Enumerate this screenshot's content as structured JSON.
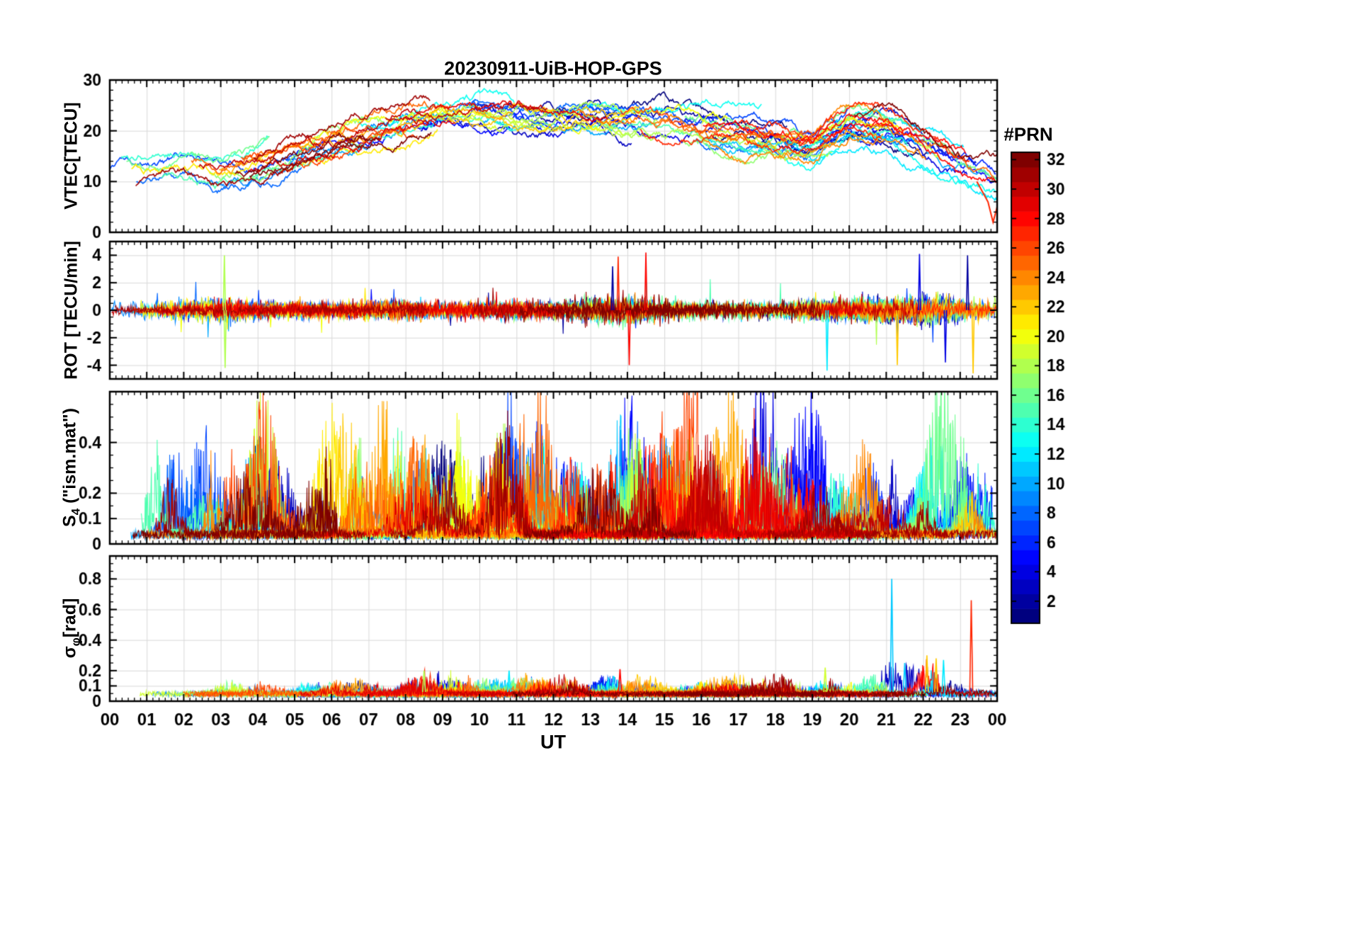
{
  "title": "20230911-UiB-HOP-GPS",
  "xlabel": "UT",
  "x_axis": {
    "range_hours": [
      0,
      24
    ],
    "tick_labels": [
      "00",
      "01",
      "02",
      "03",
      "04",
      "05",
      "06",
      "07",
      "08",
      "09",
      "10",
      "11",
      "12",
      "13",
      "14",
      "15",
      "16",
      "17",
      "18",
      "19",
      "20",
      "21",
      "22",
      "23",
      "00"
    ]
  },
  "colorbar": {
    "label": "#PRN",
    "ticks": [
      2,
      4,
      6,
      8,
      10,
      12,
      14,
      16,
      18,
      20,
      22,
      24,
      26,
      28,
      30,
      32
    ],
    "colormap": "jet",
    "n_colors": 32,
    "value_range": [
      1,
      32
    ]
  },
  "chart_data": [
    {
      "type": "line",
      "name": "vtec",
      "ylabel": "VTEC[TECU]",
      "ylim": [
        0,
        30
      ],
      "yticks": [
        0,
        10,
        20,
        30
      ],
      "ytick_labels": [
        "0",
        "10",
        "20",
        "30"
      ],
      "minor_step": 2,
      "series_count": 32,
      "mean_hourly": [
        12,
        12.5,
        13,
        11.5,
        13,
        15.5,
        18,
        20,
        21.5,
        23,
        23.5,
        22.5,
        22,
        22.5,
        21.5,
        21,
        20,
        19,
        18,
        17,
        21,
        20.5,
        17,
        13.5,
        10.5
      ],
      "spread_tecu": 3,
      "events": [
        {
          "x0": 23.45,
          "x1": 24,
          "y0": 10,
          "y1": 2,
          "prn": 27
        }
      ]
    },
    {
      "type": "line",
      "name": "rot",
      "ylabel": "ROT [TECU/min]",
      "ylim": [
        -5,
        5
      ],
      "yticks": [
        -4,
        -2,
        0,
        2,
        4
      ],
      "ytick_labels": [
        "-4",
        "-2",
        "0",
        "2",
        "4"
      ],
      "minor_step": 0.5,
      "series_count": 32,
      "amp_hourly": [
        0.5,
        0.45,
        0.6,
        0.7,
        0.5,
        0.45,
        0.4,
        0.5,
        0.6,
        0.5,
        0.5,
        0.6,
        0.5,
        0.8,
        0.9,
        0.6,
        0.5,
        0.5,
        0.45,
        0.6,
        0.7,
        0.8,
        0.9,
        0.8,
        0.6
      ],
      "events": [
        {
          "x": 3.1,
          "y": 4.0,
          "prn": 18
        },
        {
          "x": 3.12,
          "y": -4.2,
          "prn": 18
        },
        {
          "x": 13.6,
          "y": 3.2,
          "prn": 2
        },
        {
          "x": 13.75,
          "y": 3.9,
          "prn": 27
        },
        {
          "x": 14.5,
          "y": 4.2,
          "prn": 28
        },
        {
          "x": 14.05,
          "y": -4.0,
          "prn": 28
        },
        {
          "x": 19.4,
          "y": -4.4,
          "prn": 12
        },
        {
          "x": 21.3,
          "y": -4.0,
          "prn": 22
        },
        {
          "x": 21.9,
          "y": 4.1,
          "prn": 4
        },
        {
          "x": 22.6,
          "y": -3.8,
          "prn": 4
        },
        {
          "x": 23.2,
          "y": 4.0,
          "prn": 2
        },
        {
          "x": 23.35,
          "y": -4.6,
          "prn": 22
        }
      ]
    },
    {
      "type": "line",
      "name": "s4",
      "ylabel": {
        "pre": "S",
        "sub": "4",
        "post": " (\"ism.mat\")"
      },
      "ylim": [
        0,
        0.6
      ],
      "yticks": [
        0,
        0.1,
        0.2,
        0.4
      ],
      "ytick_labels": [
        "0",
        "0.1",
        "0.2",
        "0.4"
      ],
      "minor_step": 0.05,
      "series_count": 32,
      "baseline": 0.03,
      "burst_max_hourly": [
        0.55,
        0.5,
        0.55,
        0.45,
        0.55,
        0.5,
        0.58,
        0.45,
        0.42,
        0.45,
        0.5,
        0.5,
        0.33,
        0.35,
        0.55,
        0.42,
        0.45,
        0.5,
        0.52,
        0.38,
        0.3,
        0.3,
        0.38,
        0.35,
        0.3
      ]
    },
    {
      "type": "line",
      "name": "sigma_phi",
      "ylabel": {
        "pre": "σ",
        "sub": "φ",
        "post": "[rad]"
      },
      "ylim": [
        0,
        0.95
      ],
      "yticks": [
        0,
        0.1,
        0.2,
        0.4,
        0.6,
        0.8
      ],
      "ytick_labels": [
        "0",
        "0.1",
        "0.2",
        "0.4",
        "0.6",
        "0.8"
      ],
      "minor_step": 0.05,
      "series_count": 32,
      "baseline": 0.05,
      "bump_max_hourly": [
        0.1,
        0.1,
        0.1,
        0.1,
        0.1,
        0.08,
        0.1,
        0.1,
        0.15,
        0.1,
        0.12,
        0.15,
        0.1,
        0.12,
        0.15,
        0.12,
        0.1,
        0.1,
        0.1,
        0.15,
        0.12,
        0.2,
        0.2,
        0.12,
        0.1
      ],
      "events": [
        {
          "x": 8.5,
          "y": 0.2,
          "prn": 18
        },
        {
          "x": 10.8,
          "y": 0.2,
          "prn": 12
        },
        {
          "x": 13.8,
          "y": 0.21,
          "prn": 28
        },
        {
          "x": 19.35,
          "y": 0.22,
          "prn": 19
        },
        {
          "x": 21.15,
          "y": 0.8,
          "prn": 11
        },
        {
          "x": 21.5,
          "y": 0.25,
          "prn": 11
        },
        {
          "x": 22.1,
          "y": 0.3,
          "prn": 22
        },
        {
          "x": 22.35,
          "y": 0.28,
          "prn": 22
        },
        {
          "x": 22.55,
          "y": 0.27,
          "prn": 12
        },
        {
          "x": 23.3,
          "y": 0.66,
          "prn": 27
        }
      ]
    }
  ]
}
